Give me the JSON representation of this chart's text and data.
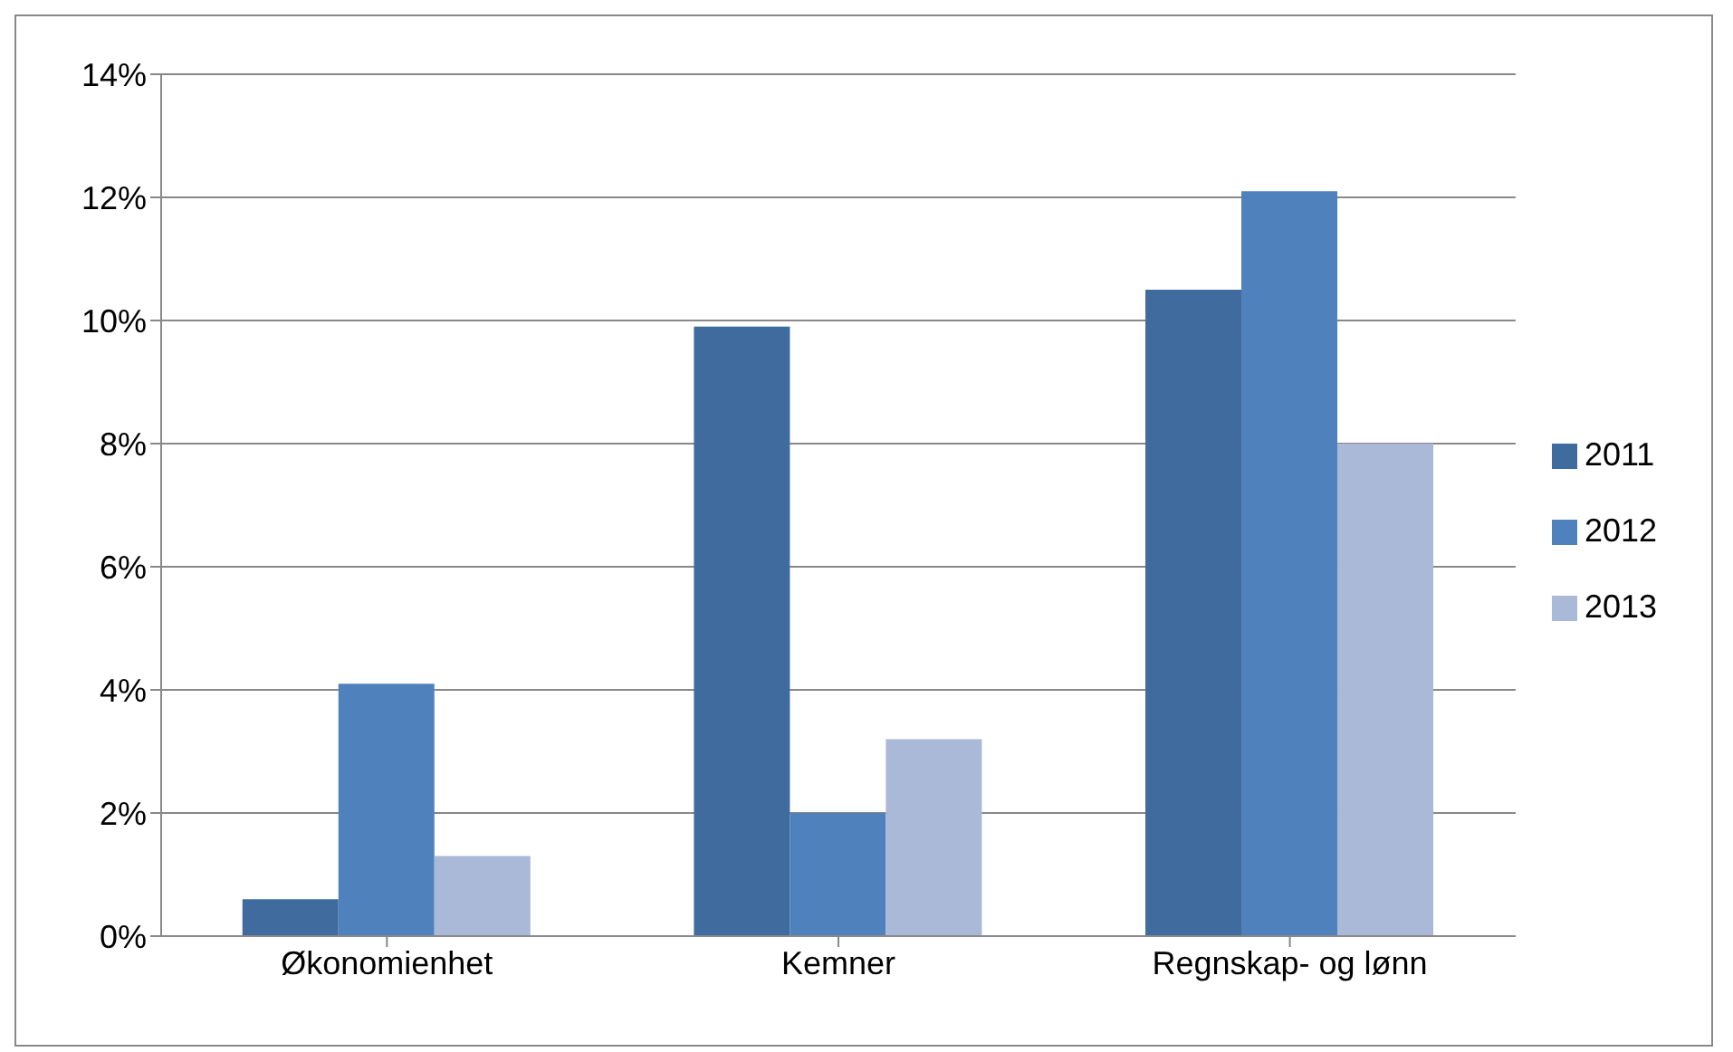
{
  "chart_data": {
    "type": "bar",
    "categories": [
      "Økonomienhet",
      "Kemner",
      "Regnskap- og lønn"
    ],
    "series": [
      {
        "name": "2011",
        "color": "#3f6b9e",
        "values": [
          0.6,
          9.9,
          10.5
        ]
      },
      {
        "name": "2012",
        "color": "#4f81bd",
        "values": [
          4.1,
          2.0,
          12.1
        ]
      },
      {
        "name": "2013",
        "color": "#aab9d8",
        "values": [
          1.3,
          3.2,
          8.0
        ]
      }
    ],
    "ylim": [
      0,
      14
    ],
    "yticks": [
      {
        "value": 0,
        "label": "0%"
      },
      {
        "value": 2,
        "label": "2%"
      },
      {
        "value": 4,
        "label": "4%"
      },
      {
        "value": 6,
        "label": "6%"
      },
      {
        "value": 8,
        "label": "8%"
      },
      {
        "value": 10,
        "label": "10%"
      },
      {
        "value": 12,
        "label": "12%"
      },
      {
        "value": 14,
        "label": "14%"
      }
    ],
    "grid": "y",
    "legend": "right"
  }
}
